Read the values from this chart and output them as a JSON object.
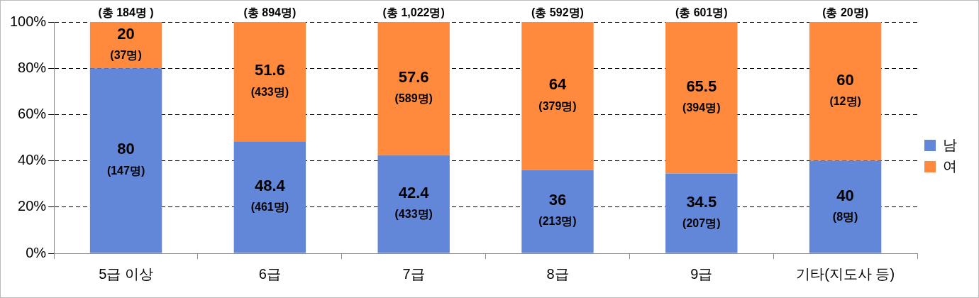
{
  "chart_data": {
    "type": "bar",
    "stacked": true,
    "categories": [
      "5급 이상",
      "6급",
      "7급",
      "8급",
      "9급",
      "기타(지도사 등)"
    ],
    "series": [
      {
        "name": "남",
        "color": "#6286d8",
        "values": [
          80,
          48.4,
          42.4,
          36,
          34.5,
          40
        ],
        "value_labels": [
          "80\n(147명)",
          "48.4\n(461명)",
          "42.4\n(433명)",
          "36\n(213명)",
          "34.5\n(207명)",
          "40\n(8명)"
        ]
      },
      {
        "name": "여",
        "color": "#ff8a3d",
        "values": [
          20,
          51.6,
          57.6,
          64,
          65.5,
          60
        ],
        "value_labels": [
          "20\n(37명)",
          "51.6\n(433명)",
          "57.6\n(589명)",
          "64\n(379명)",
          "65.5\n(394명)",
          "60\n(12명)"
        ]
      }
    ],
    "totals": [
      "(총 184명 )",
      "(총 894명)",
      "(총 1,022명)",
      "(총 592명)",
      "(총 601명)",
      "(총 20명)"
    ],
    "ylim": [
      0,
      100
    ],
    "yticks": [
      {
        "value": 0,
        "label": "0%"
      },
      {
        "value": 20,
        "label": "20%"
      },
      {
        "value": 40,
        "label": "40%"
      },
      {
        "value": 60,
        "label": "60%"
      },
      {
        "value": 80,
        "label": "80%"
      },
      {
        "value": 100,
        "label": "100%"
      }
    ],
    "grid": "y",
    "legend": "right"
  }
}
